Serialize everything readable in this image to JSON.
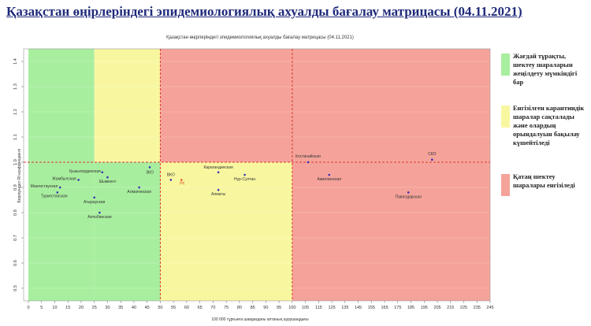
{
  "page_title": "Қазақстан өңірлеріндегі эпидемиологиялық ахуалды бағалау матрицасы  (04.11.2021)",
  "legend": [
    {
      "label": "Жағдай тұрақты, шектеу шараларын жеңілдету мүмкіндігі бар",
      "color": "#a8ee9f"
    },
    {
      "label": "Енгізілген карантиндік шаралар сақталады және олардың орындалуын бақылау күшейтіледі",
      "color": "#f8f7a0"
    },
    {
      "label": "Қатаң шектеу шаралары енгізіледі",
      "color": "#f5a39a"
    }
  ],
  "chart_data": {
    "type": "scatter",
    "title": "Қазақстан өңірлеріндегі эпидемиологиялық ахуалды бағалау матрицасы  (04.11.2021)",
    "xlabel": "100 000 тұрғынға шаққандағы аптаның аурушаңдығы",
    "ylabel": "Берілуіндегі Rt коэффициенті",
    "xlim": [
      0,
      250
    ],
    "ylim": [
      0.45,
      1.45
    ],
    "x_ticks": [
      0,
      5,
      10,
      15,
      20,
      25,
      30,
      35,
      40,
      45,
      50,
      55,
      60,
      65,
      70,
      75,
      80,
      85,
      90,
      95,
      100,
      105,
      115,
      125,
      135,
      145,
      155,
      165,
      175,
      185,
      195,
      205,
      215,
      225,
      235,
      245
    ],
    "y_ticks": [
      "0.5",
      "0.6",
      "0.7",
      "0.8",
      "0.9",
      "1.0",
      "1.1",
      "1.2",
      "1.3",
      "1.4"
    ],
    "zones": [
      {
        "x_from": 0,
        "x_to": 25,
        "color": "#a8ee9f"
      },
      {
        "x_from": 25,
        "x_to": 50,
        "y_from": 1.0,
        "y_to": 1.45,
        "color": "#f8f7a0"
      },
      {
        "x_from": 25,
        "x_to": 50,
        "y_from": 0.45,
        "y_to": 1.0,
        "color": "#a8ee9f"
      },
      {
        "x_from": 50,
        "x_to": 100,
        "y_from": 1.0,
        "y_to": 1.45,
        "color": "#f5a39a"
      },
      {
        "x_from": 50,
        "x_to": 100,
        "y_from": 0.45,
        "y_to": 1.0,
        "color": "#f8f7a0"
      },
      {
        "x_from": 100,
        "x_to": 250,
        "color": "#f5a39a"
      }
    ],
    "reference_lines": {
      "x": [
        50,
        100
      ],
      "y": [
        1.0
      ]
    },
    "points": [
      {
        "label": "Қызылординская",
        "x": 28,
        "y": 0.96
      },
      {
        "label": "ЗКО",
        "x": 46,
        "y": 0.98
      },
      {
        "label": "Жамбылская",
        "x": 19,
        "y": 0.93
      },
      {
        "label": "Шымкент",
        "x": 30,
        "y": 0.94
      },
      {
        "label": "Мангистауская",
        "x": 12,
        "y": 0.9
      },
      {
        "label": "Алматинская",
        "x": 42,
        "y": 0.9
      },
      {
        "label": "Туркестанская",
        "x": 11,
        "y": 0.88
      },
      {
        "label": "Атырауская",
        "x": 25,
        "y": 0.86
      },
      {
        "label": "Актюбинская",
        "x": 27,
        "y": 0.8
      },
      {
        "label": "Костанайская",
        "x": 107,
        "y": 1.0
      },
      {
        "label": "СКО",
        "x": 201,
        "y": 1.01
      },
      {
        "label": "Карагандинская",
        "x": 72,
        "y": 0.96
      },
      {
        "label": "ВКО",
        "x": 54,
        "y": 0.93
      },
      {
        "label": "РК",
        "x": 58,
        "y": 0.93
      },
      {
        "label": "Нур-Султан",
        "x": 82,
        "y": 0.95
      },
      {
        "label": "Акмолинская",
        "x": 123,
        "y": 0.95
      },
      {
        "label": "Алматы",
        "x": 72,
        "y": 0.89
      },
      {
        "label": "Павлодарская",
        "x": 183,
        "y": 0.88
      }
    ]
  }
}
